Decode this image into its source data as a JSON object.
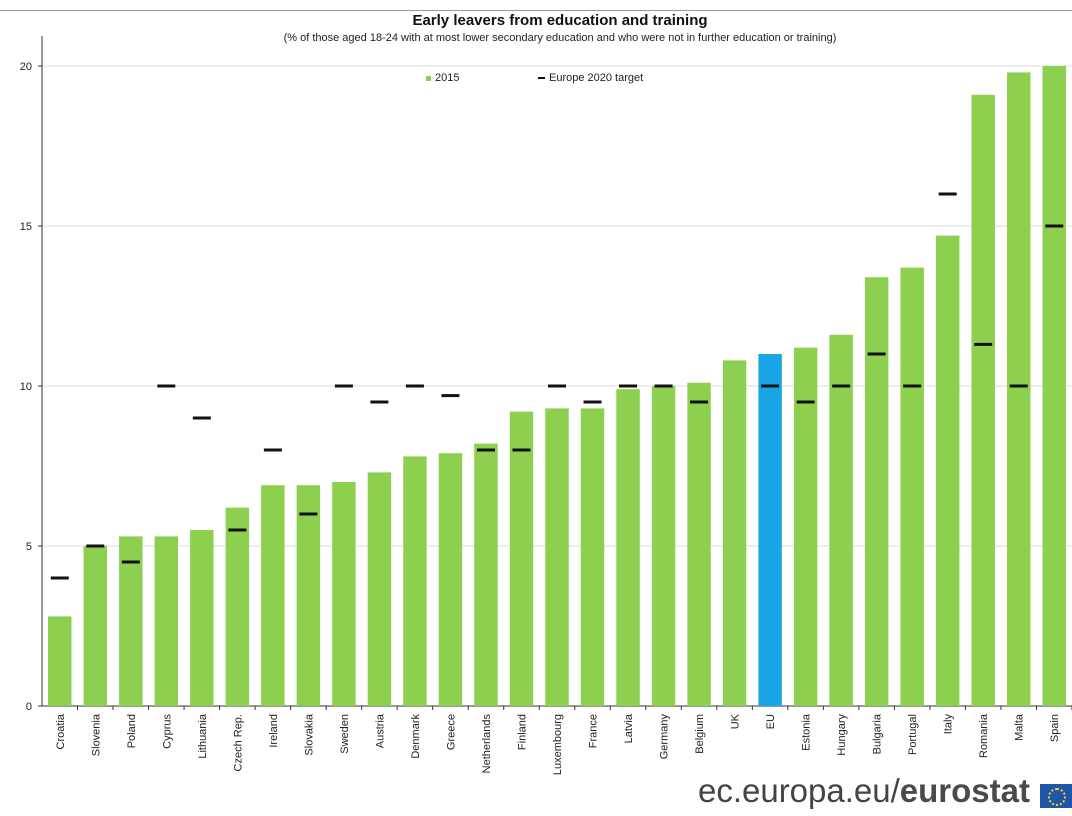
{
  "chart_data": {
    "type": "bar",
    "title": "Early leavers from education and training",
    "subtitle": "(% of those aged 18-24 with at most lower secondary education and who were not in further education or training)",
    "xlabel": "",
    "ylabel": "",
    "ylim": [
      0,
      20
    ],
    "yticks": [
      "0",
      "5",
      "10",
      "15",
      "20"
    ],
    "grid": true,
    "legend_placement": "top-center",
    "categories": [
      "Croatia",
      "Slovenia",
      "Poland",
      "Cyprus",
      "Lithuania",
      "Czech Rep.",
      "Ireland",
      "Slovakia",
      "Sweden",
      "Austria",
      "Denmark",
      "Greece",
      "Netherlands",
      "Finland",
      "Luxembourg",
      "France",
      "Latvia",
      "Germany",
      "Belgium",
      "UK",
      "EU",
      "Estonia",
      "Hungary",
      "Bulgaria",
      "Portugal",
      "Italy",
      "Romania",
      "Malta",
      "Spain"
    ],
    "series": [
      {
        "name": "2015",
        "kind": "bar",
        "values": [
          2.8,
          5.0,
          5.3,
          5.3,
          5.5,
          6.2,
          6.9,
          6.9,
          7.0,
          7.3,
          7.8,
          7.9,
          8.2,
          9.2,
          9.3,
          9.3,
          9.9,
          10.0,
          10.1,
          10.8,
          11.0,
          11.2,
          11.6,
          13.4,
          13.7,
          14.7,
          19.1,
          19.8,
          20.0
        ]
      },
      {
        "name": "Europe 2020 target",
        "kind": "marker",
        "values": [
          4.0,
          5.0,
          4.5,
          10.0,
          9.0,
          5.5,
          8.0,
          6.0,
          10.0,
          9.5,
          10.0,
          9.7,
          8.0,
          8.0,
          10.0,
          9.5,
          10.0,
          10.0,
          9.5,
          null,
          10.0,
          9.5,
          10.0,
          11.0,
          10.0,
          16.0,
          11.3,
          10.0,
          15.0
        ]
      }
    ],
    "highlight_category": "EU",
    "colors": {
      "bar": "#8dcf4f",
      "highlight": "#1aa6e6",
      "target": "#111111",
      "grid": "#dddddd",
      "axis": "#333333"
    }
  },
  "footer": {
    "source_plain": "ec.europa.eu/",
    "source_bold": "eurostat"
  }
}
